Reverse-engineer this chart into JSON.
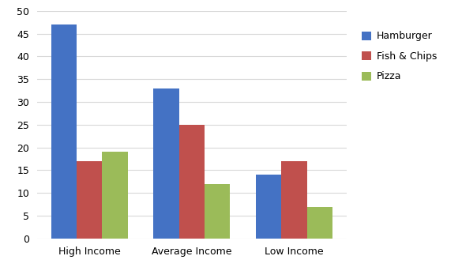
{
  "categories": [
    "High Income",
    "Average Income",
    "Low Income"
  ],
  "series": {
    "Hamburger": [
      47,
      33,
      14
    ],
    "Fish & Chips": [
      17,
      25,
      17
    ],
    "Pizza": [
      19,
      12,
      7
    ]
  },
  "colors": {
    "Hamburger": "#4472C4",
    "Fish & Chips": "#C0504D",
    "Pizza": "#9BBB59"
  },
  "ylim": [
    0,
    50
  ],
  "yticks": [
    0,
    5,
    10,
    15,
    20,
    25,
    30,
    35,
    40,
    45,
    50
  ],
  "bar_width": 0.25,
  "background_color": "#FFFFFF",
  "grid_color": "#D9D9D9",
  "legend_labels": [
    "Hamburger",
    "Fish & Chips",
    "Pizza"
  ],
  "tick_fontsize": 9,
  "legend_fontsize": 9
}
